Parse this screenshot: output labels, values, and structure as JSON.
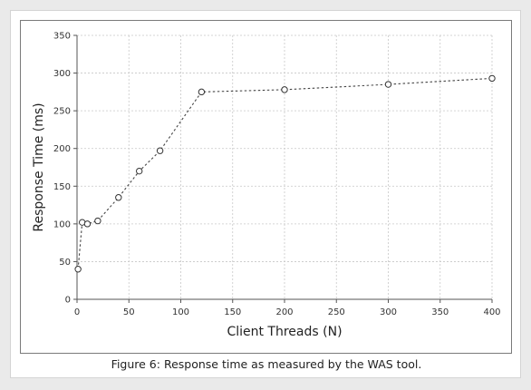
{
  "caption": "Figure 6: Response time as measured by the WAS tool.",
  "chart_data": {
    "type": "line",
    "xlabel": "Client Threads (N)",
    "ylabel": "Response Time (ms)",
    "xlim": [
      0,
      400
    ],
    "ylim": [
      0,
      350
    ],
    "xticks": [
      0,
      50,
      100,
      150,
      200,
      250,
      300,
      350,
      400
    ],
    "yticks": [
      0,
      50,
      100,
      150,
      200,
      250,
      300,
      350
    ],
    "grid": true,
    "line_style": "dotted",
    "marker": "open-circle",
    "series": [
      {
        "x": [
          1,
          5,
          10,
          20,
          40,
          60,
          80,
          120,
          200,
          300,
          400
        ],
        "y": [
          40,
          102,
          100,
          104,
          135,
          170,
          197,
          275,
          278,
          285,
          293
        ]
      }
    ]
  }
}
